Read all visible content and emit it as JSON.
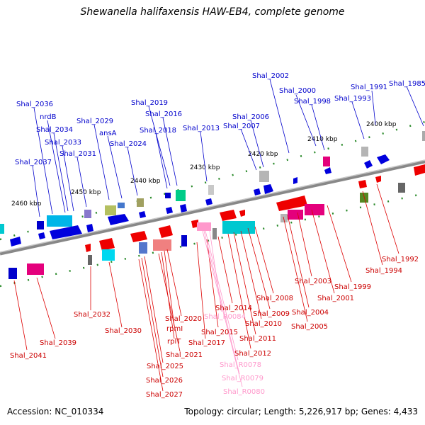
{
  "header": {
    "title": "Shewanella halifaxensis HAW-EB4, complete genome"
  },
  "footer": {
    "accession": "Accession: NC_010334",
    "topology": "Topology: circular; Length: 5,226,917 bp; Genes: 4,433"
  },
  "colors": {
    "blue_label": "#0000cc",
    "red_label": "#cc0000",
    "rna_label": "#ff99cc",
    "axis": "#777777",
    "tick": "#2a8a2a"
  },
  "scale": [
    "2400 kbp",
    "2410 kbp",
    "2420 kbp",
    "2430 kbp",
    "2440 kbp",
    "2450 kbp",
    "2460 kbp"
  ],
  "top_labels": [
    "Shal_1985",
    "Shal_1991",
    "Shal_1993",
    "Shal_1998",
    "Shal_2000",
    "Shal_2002",
    "Shal_2006",
    "Shal_2007",
    "Shal_2013",
    "Shal_2016",
    "Shal_2018",
    "Shal_2019",
    "Shal_2024",
    "Shal_2029",
    "ansA",
    "Shal_2031",
    "Shal_2033",
    "Shal_2034",
    "nrdB",
    "Shal_2036",
    "Shal_2037"
  ],
  "bottom_labels": [
    "Shal_1992",
    "Shal_1994",
    "Shal_1999",
    "Shal_2001",
    "Shal_2003",
    "Shal_2004",
    "Shal_2005",
    "Shal_2008",
    "Shal_2009",
    "Shal_2010",
    "Shal_2011",
    "Shal_2012",
    "Shal_2014",
    "Shal_2015",
    "Shal_2017",
    "Shal_2020",
    "rpmI",
    "rplT",
    "Shal_2021",
    "Shal_2025",
    "Shal_2026",
    "Shal_2027",
    "Shal_2030",
    "Shal_2032",
    "Shal_2039",
    "Shal_2041"
  ],
  "rna_labels": [
    "Shal_R0084",
    "Shal_R0078",
    "Shal_R0079",
    "Shal_R0080"
  ]
}
